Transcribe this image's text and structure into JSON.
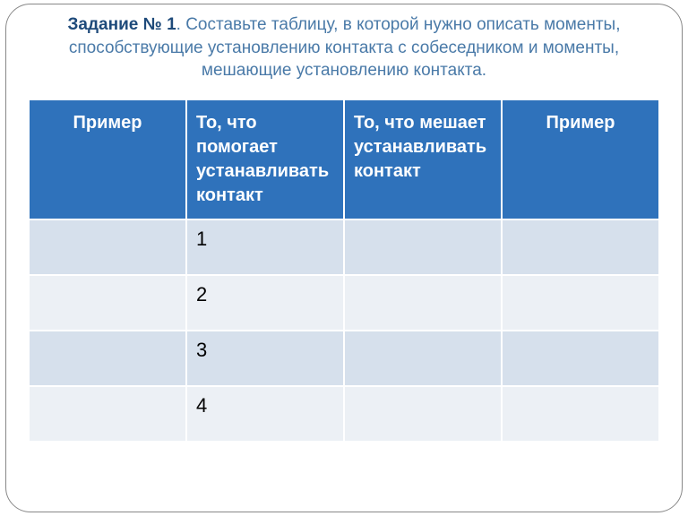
{
  "title": {
    "bold": "Задание № 1",
    "rest": ".  Составьте таблицу, в которой нужно описать моменты, способствующие установлению контакта с собеседником и моменты, мешающие установлению контакта."
  },
  "table": {
    "columns": [
      {
        "label": "Пример",
        "align": "center",
        "width": "25%"
      },
      {
        "label": "То, что помогает устанавливать контакт",
        "align": "left",
        "width": "25%"
      },
      {
        "label": "То, что мешает устанавливать контакт",
        "align": "left",
        "width": "25%"
      },
      {
        "label": "Пример",
        "align": "center",
        "width": "25%"
      }
    ],
    "rows": [
      {
        "c1": "",
        "c2": "1",
        "c3": "",
        "c4": ""
      },
      {
        "c1": "",
        "c2": "2",
        "c3": "",
        "c4": ""
      },
      {
        "c1": "",
        "c2": "3",
        "c3": "",
        "c4": ""
      },
      {
        "c1": "",
        "c2": "4",
        "c3": "",
        "c4": ""
      }
    ],
    "header_bg": "#2f72bb",
    "header_text_color": "#ffffff",
    "odd_row_bg": "#d6e0ec",
    "even_row_bg": "#ecf0f5",
    "border_color": "#ffffff",
    "header_fontsize": 20,
    "cell_fontsize": 22
  },
  "frame": {
    "border_color": "#888888",
    "border_radius": 28
  }
}
